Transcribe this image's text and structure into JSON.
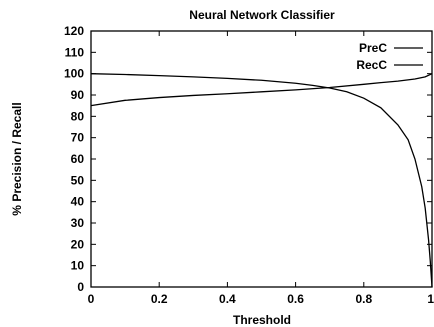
{
  "chart_data": {
    "type": "line",
    "title": "Neural Network Classifier",
    "xlabel": "Threshold",
    "ylabel": "% Precision / Recall",
    "xlim": [
      0,
      1
    ],
    "ylim": [
      0,
      120
    ],
    "x_ticks": [
      "0",
      "0.2",
      "0.4",
      "0.6",
      "0.8",
      "1"
    ],
    "y_ticks": [
      "0",
      "10",
      "20",
      "30",
      "40",
      "50",
      "60",
      "70",
      "80",
      "90",
      "100",
      "110",
      "120"
    ],
    "grid": false,
    "legend_position": "top-right",
    "series": [
      {
        "name": "PreC",
        "x": [
          0,
          0.1,
          0.2,
          0.3,
          0.4,
          0.5,
          0.6,
          0.7,
          0.8,
          0.85,
          0.9,
          0.95,
          0.98,
          1.0
        ],
        "y": [
          85,
          87.5,
          88.8,
          89.8,
          90.6,
          91.5,
          92.4,
          93.5,
          95,
          95.8,
          96.5,
          97.5,
          98.5,
          100
        ]
      },
      {
        "name": "RecC",
        "x": [
          0,
          0.1,
          0.2,
          0.3,
          0.4,
          0.5,
          0.6,
          0.65,
          0.7,
          0.75,
          0.8,
          0.85,
          0.9,
          0.93,
          0.95,
          0.97,
          0.98,
          0.99,
          0.995,
          1.0
        ],
        "y": [
          100,
          99.6,
          99.1,
          98.5,
          97.8,
          96.9,
          95.5,
          94.5,
          93.3,
          91.5,
          88.5,
          84,
          76,
          69,
          60,
          47,
          37,
          22,
          12,
          0
        ]
      }
    ]
  }
}
